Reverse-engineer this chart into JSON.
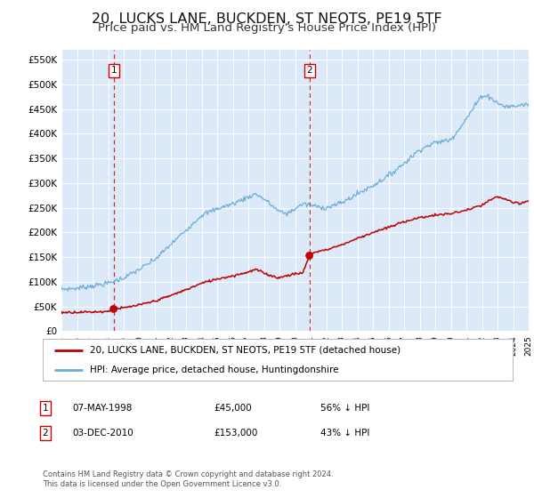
{
  "title": "20, LUCKS LANE, BUCKDEN, ST NEOTS, PE19 5TF",
  "subtitle": "Price paid vs. HM Land Registry's House Price Index (HPI)",
  "title_fontsize": 11.5,
  "subtitle_fontsize": 9.5,
  "bg_color": "#ffffff",
  "plot_bg_color": "#dce9f8",
  "grid_color": "#ffffff",
  "sale1_date": 1998.35,
  "sale1_price": 45000,
  "sale2_date": 2010.92,
  "sale2_price": 153000,
  "ylabel_ticks": [
    "£0",
    "£50K",
    "£100K",
    "£150K",
    "£200K",
    "£250K",
    "£300K",
    "£350K",
    "£400K",
    "£450K",
    "£500K",
    "£550K"
  ],
  "ylabel_values": [
    0,
    50000,
    100000,
    150000,
    200000,
    250000,
    300000,
    350000,
    400000,
    450000,
    500000,
    550000
  ],
  "hpi_color": "#6baed6",
  "price_color": "#c00000",
  "legend_label1": "20, LUCKS LANE, BUCKDEN, ST NEOTS, PE19 5TF (detached house)",
  "legend_label2": "HPI: Average price, detached house, Huntingdonshire",
  "table_row1": [
    "1",
    "07-MAY-1998",
    "£45,000",
    "56% ↓ HPI"
  ],
  "table_row2": [
    "2",
    "03-DEC-2010",
    "£153,000",
    "43% ↓ HPI"
  ],
  "footer": "Contains HM Land Registry data © Crown copyright and database right 2024.\nThis data is licensed under the Open Government Licence v3.0.",
  "xmin": 1995,
  "xmax": 2025,
  "ymin": 0,
  "ymax": 570000
}
